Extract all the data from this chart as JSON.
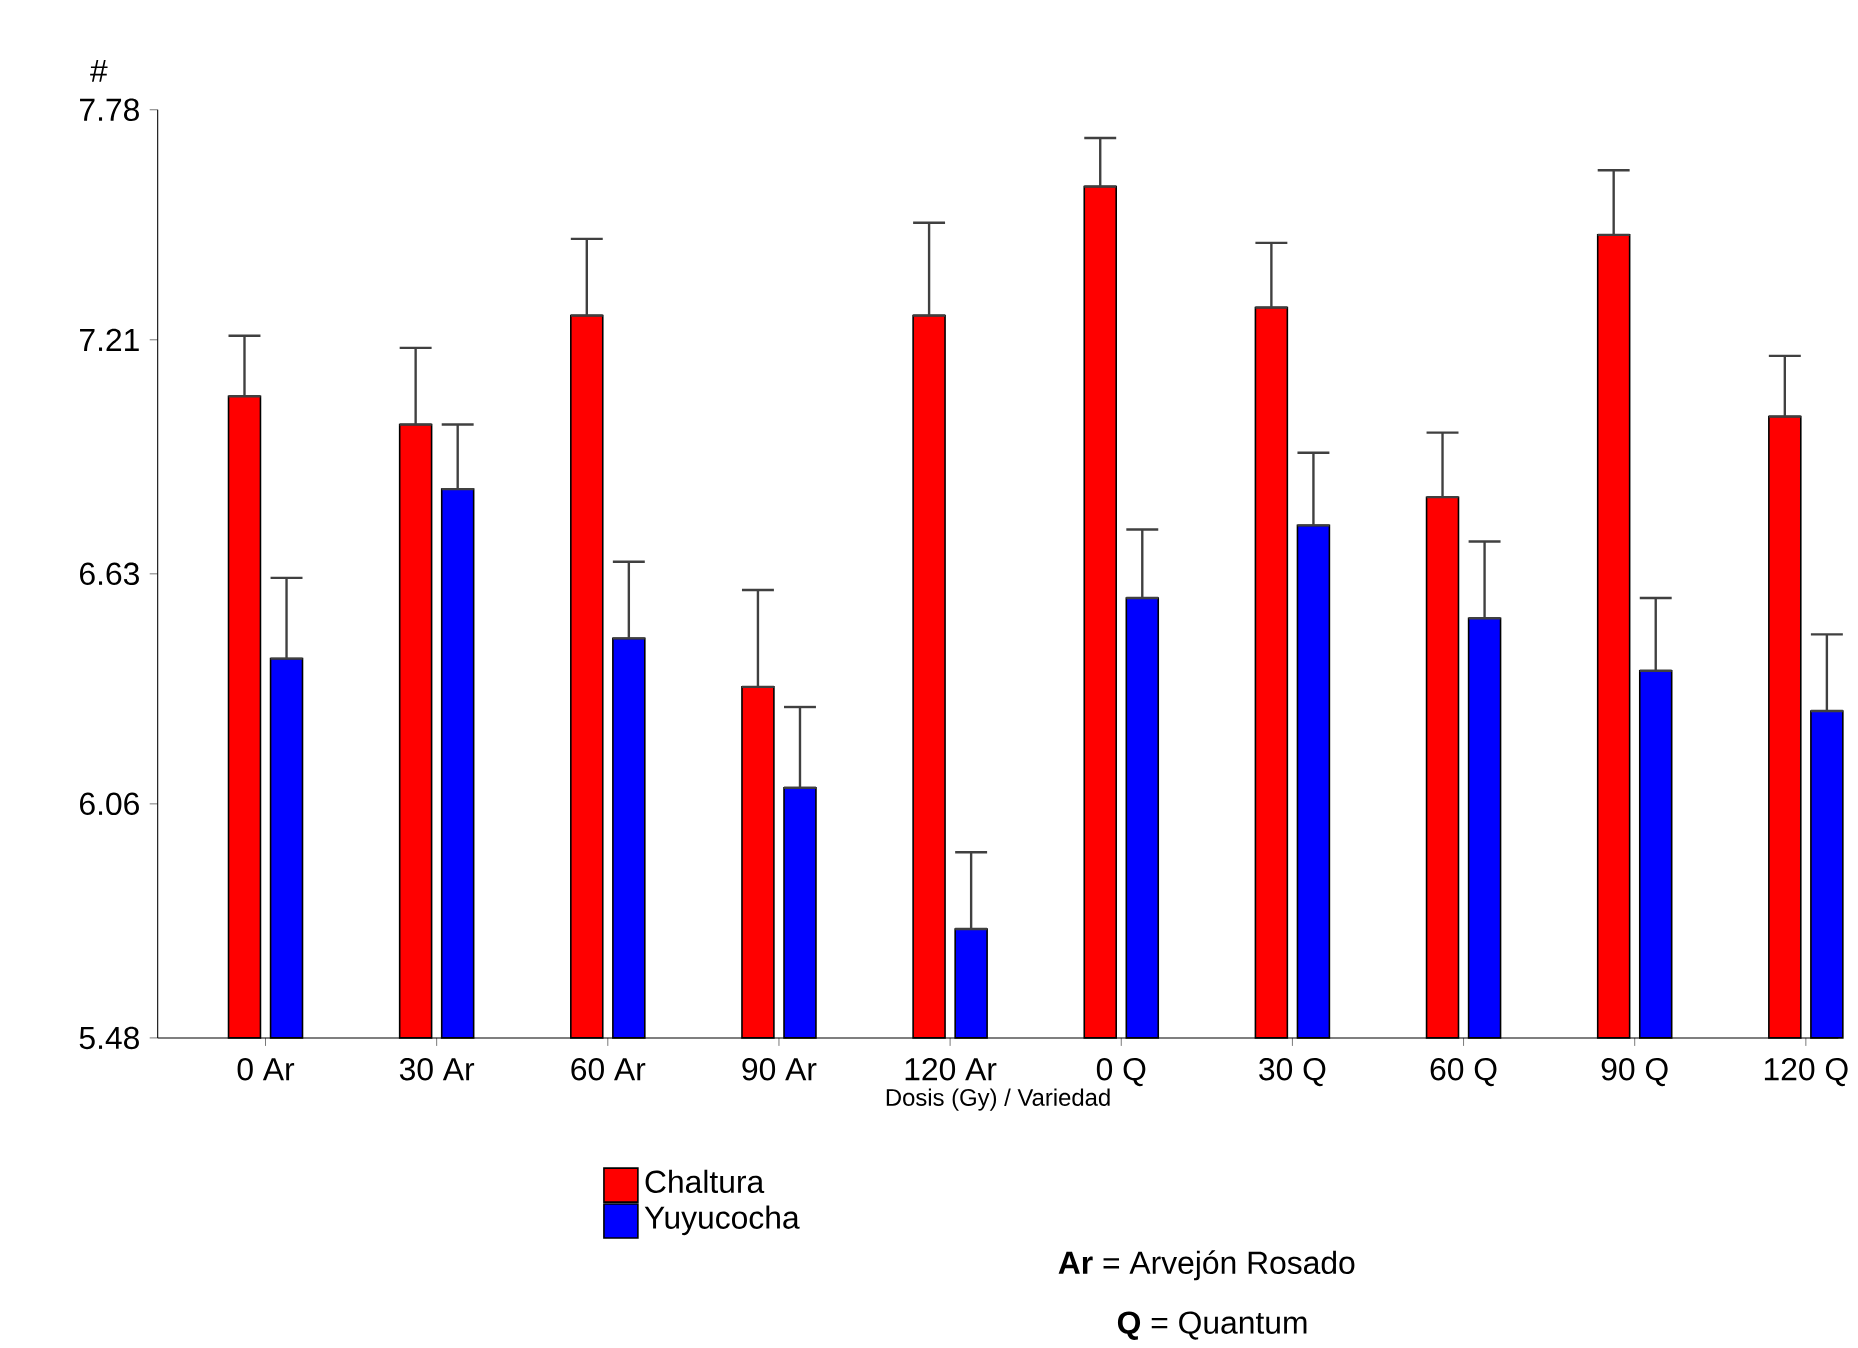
{
  "chart_data": {
    "type": "bar",
    "ylabel": "#",
    "xlabel": "Dosis (Gy) / Variedad",
    "categories": [
      "0 Ar",
      "30 Ar",
      "60 Ar",
      "90 Ar",
      "120 Ar",
      "0 Q",
      "30 Q",
      "60 Q",
      "90 Q",
      "120 Q"
    ],
    "series": [
      {
        "name": "Chaltura",
        "color": "#ff0000",
        "values": [
          7.07,
          7.0,
          7.27,
          6.35,
          7.27,
          7.59,
          7.29,
          6.82,
          7.47,
          7.02
        ],
        "errors": [
          [
            7.07,
            7.22
          ],
          [
            7.0,
            7.19
          ],
          [
            7.27,
            7.46
          ],
          [
            6.35,
            6.59
          ],
          [
            7.27,
            7.5
          ],
          [
            7.59,
            7.71
          ],
          [
            7.29,
            7.45
          ],
          [
            6.82,
            6.98
          ],
          [
            7.47,
            7.63
          ],
          [
            7.02,
            7.17
          ]
        ]
      },
      {
        "name": "Yuyucocha",
        "color": "#0000ff",
        "values": [
          6.42,
          6.84,
          6.47,
          6.1,
          5.75,
          6.57,
          6.75,
          6.52,
          6.39,
          6.29
        ],
        "errors": [
          [
            6.42,
            6.62
          ],
          [
            6.84,
            7.0
          ],
          [
            6.47,
            6.66
          ],
          [
            6.1,
            6.3
          ],
          [
            5.75,
            5.94
          ],
          [
            6.57,
            6.74
          ],
          [
            6.75,
            6.93
          ],
          [
            6.52,
            6.71
          ],
          [
            6.39,
            6.57
          ],
          [
            6.29,
            6.48
          ]
        ]
      }
    ],
    "ylim": [
      5.48,
      7.78
    ],
    "yticks": [
      5.48,
      6.06,
      6.63,
      7.21,
      7.78
    ],
    "grid": false,
    "legend": "bottom",
    "annotations": [
      "**Ar** = Arvejón Rosado",
      "**Q** = Quantum"
    ]
  }
}
